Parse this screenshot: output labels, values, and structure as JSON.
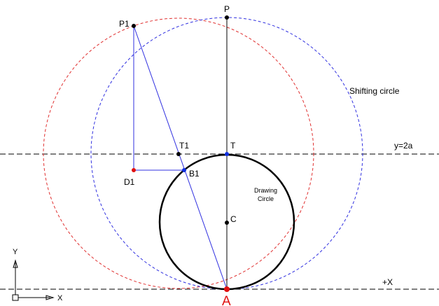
{
  "labels": {
    "p": "P",
    "p1": "P1",
    "shifting_circle": "Shifting circle",
    "t1": "T1",
    "t": "T",
    "y2a": "y=2a",
    "d1": "D1",
    "b1": "B1",
    "drawing_circle": [
      "Drawing",
      "Circle"
    ],
    "c": "C",
    "plus_x": "+X",
    "a": "A"
  },
  "axis_icon": {
    "y": "Y",
    "x": "X"
  }
}
